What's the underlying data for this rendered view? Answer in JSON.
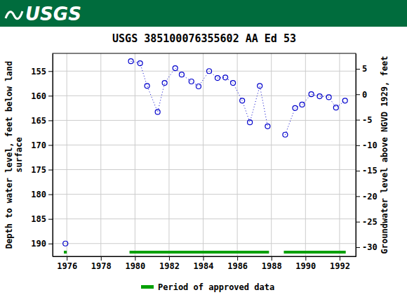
{
  "header": {
    "text": "USGS"
  },
  "chart_data": {
    "type": "line",
    "title": "USGS 385100076355602 AA Ed  53",
    "ylabel": [
      "Depth to water level, feet below land",
      "surface"
    ],
    "y2label": "Groundwater level above NGVD 1929, feet",
    "x": [
      1975.92,
      null,
      1979.76,
      1980.3,
      1980.71,
      1981.33,
      1981.74,
      1982.36,
      1982.74,
      1983.31,
      1983.73,
      1984.35,
      1984.84,
      1985.3,
      1985.75,
      1986.29,
      1986.74,
      1987.32,
      1987.78,
      null,
      1988.81,
      1989.39,
      1989.8,
      1990.34,
      1990.83,
      1991.37,
      1991.79,
      1992.32
    ],
    "series": [
      {
        "color": "#0000cc",
        "marker": "circle",
        "line_style": "dotted",
        "values": [
          190.0,
          null,
          153.0,
          153.4,
          158.0,
          163.3,
          157.4,
          154.4,
          155.7,
          157.1,
          158.1,
          155.0,
          156.4,
          156.3,
          157.4,
          161.0,
          165.4,
          158.0,
          166.2,
          null,
          167.9,
          162.5,
          161.8,
          159.7,
          160.1,
          160.3,
          162.4,
          161.0
        ]
      }
    ],
    "xlim": [
      1975.17,
      1992.95
    ],
    "xticks": [
      1976,
      1978,
      1980,
      1982,
      1984,
      1986,
      1988,
      1990,
      1992
    ],
    "ylim": [
      192.6,
      151.4
    ],
    "yticks": [
      155,
      160,
      165,
      170,
      175,
      180,
      185,
      190
    ],
    "y2lim": [
      -31.8,
      8.03
    ],
    "y2ticks": [
      5,
      0,
      -5,
      -10,
      -15,
      -20,
      -25,
      -30
    ],
    "grid": true,
    "approved": {
      "name": "Period of approved data",
      "color": "#00a000",
      "periods": [
        [
          1975.83,
          1976.0
        ],
        [
          1979.68,
          1987.86
        ],
        [
          1988.73,
          1992.36
        ]
      ]
    }
  }
}
